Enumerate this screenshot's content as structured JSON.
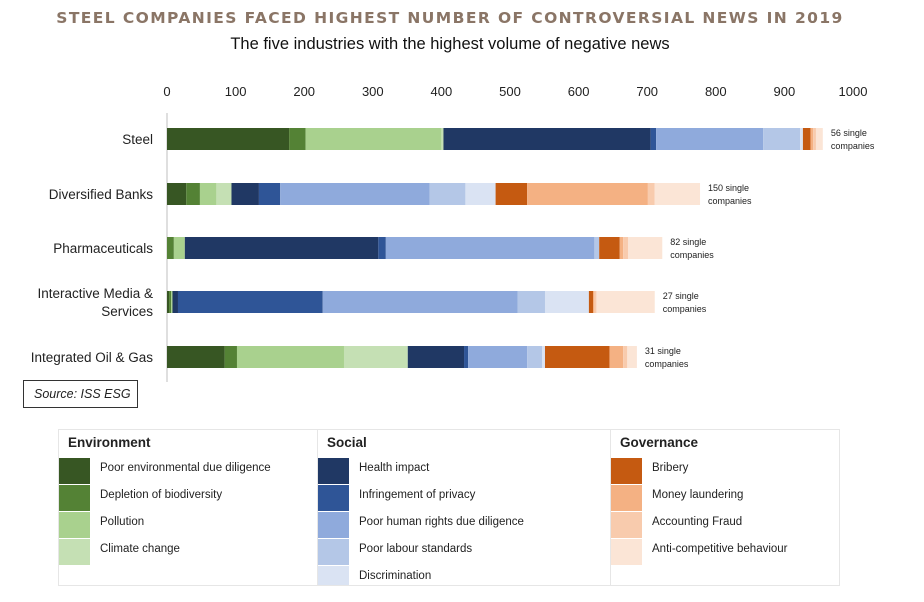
{
  "title": "STEEL COMPANIES FACED HIGHEST NUMBER OF CONTROVERSIAL NEWS IN 2019",
  "subtitle": "The five industries with the highest volume of negative news",
  "source": "Source: ISS ESG",
  "chart_data": {
    "type": "bar",
    "orientation": "horizontal",
    "stacked": true,
    "xlim": [
      0,
      1000
    ],
    "x_ticks": [
      "0",
      "100",
      "200",
      "300",
      "400",
      "500",
      "600",
      "700",
      "800",
      "900",
      "1000"
    ],
    "categories": [
      {
        "label": "Steel",
        "lines": [
          "Steel"
        ],
        "note_lines": [
          "56 single",
          "companies"
        ]
      },
      {
        "label": "Diversified Banks",
        "lines": [
          "Diversified Banks"
        ],
        "note_lines": [
          "150 single",
          "companies"
        ]
      },
      {
        "label": "Pharmaceuticals",
        "lines": [
          "Pharmaceuticals"
        ],
        "note_lines": [
          "82 single",
          "companies"
        ]
      },
      {
        "label": "Interactive Media & Services",
        "lines": [
          "Interactive Media &",
          "Services"
        ],
        "note_lines": [
          "27 single",
          "companies"
        ]
      },
      {
        "label": "Integrated Oil & Gas",
        "lines": [
          "Integrated Oil & Gas"
        ],
        "note_lines": [
          "31 single",
          "companies"
        ]
      }
    ],
    "series": [
      {
        "name": "Poor environmental due diligence",
        "group": "Environment",
        "color": "#375623",
        "values": [
          178,
          28,
          0,
          3,
          84
        ]
      },
      {
        "name": "Depletion of biodiversity",
        "group": "Environment",
        "color": "#548235",
        "values": [
          24,
          20,
          10,
          3,
          18
        ]
      },
      {
        "name": "Pollution",
        "group": "Environment",
        "color": "#a9d18e",
        "values": [
          198,
          24,
          16,
          2,
          156
        ]
      },
      {
        "name": "Climate change",
        "group": "Environment",
        "color": "#c5e0b4",
        "values": [
          3,
          22,
          0,
          0,
          93
        ]
      },
      {
        "name": "Health impact",
        "group": "Social",
        "color": "#203864",
        "values": [
          302,
          40,
          282,
          8,
          82
        ]
      },
      {
        "name": "Infringement of privacy",
        "group": "Social",
        "color": "#2f5597",
        "values": [
          8,
          31,
          11,
          211,
          6
        ]
      },
      {
        "name": "Poor human rights due diligence",
        "group": "Social",
        "color": "#8faadc",
        "values": [
          156,
          218,
          304,
          284,
          86
        ]
      },
      {
        "name": "Poor labour standards",
        "group": "Social",
        "color": "#b4c7e7",
        "values": [
          54,
          52,
          7,
          40,
          22
        ]
      },
      {
        "name": "Discrimination",
        "group": "Social",
        "color": "#dae3f3",
        "values": [
          4,
          44,
          0,
          64,
          4
        ]
      },
      {
        "name": "Bribery",
        "group": "Governance",
        "color": "#c55a11",
        "values": [
          11,
          46,
          30,
          6,
          94
        ]
      },
      {
        "name": "Money laundering",
        "group": "Governance",
        "color": "#f4b183",
        "values": [
          4,
          176,
          5,
          2,
          20
        ]
      },
      {
        "name": "Accounting Fraud",
        "group": "Governance",
        "color": "#f8cbad",
        "values": [
          4,
          10,
          7,
          3,
          6
        ]
      },
      {
        "name": "Anti-competitive behaviour",
        "group": "Governance",
        "color": "#fbe5d6",
        "values": [
          10,
          66,
          50,
          85,
          14
        ]
      }
    ]
  },
  "legend": {
    "groups": [
      {
        "header": "Environment",
        "items": [
          {
            "label": "Poor environmental due diligence",
            "color": "#375623"
          },
          {
            "label": "Depletion of biodiversity",
            "color": "#548235"
          },
          {
            "label": "Pollution",
            "color": "#a9d18e"
          },
          {
            "label": "Climate change",
            "color": "#c5e0b4"
          }
        ]
      },
      {
        "header": "Social",
        "items": [
          {
            "label": "Health impact",
            "color": "#203864"
          },
          {
            "label": "Infringement of privacy",
            "color": "#2f5597"
          },
          {
            "label": "Poor human rights due diligence",
            "color": "#8faadc"
          },
          {
            "label": "Poor labour standards",
            "color": "#b4c7e7"
          },
          {
            "label": "Discrimination",
            "color": "#dae3f3"
          }
        ]
      },
      {
        "header": "Governance",
        "items": [
          {
            "label": "Bribery",
            "color": "#c55a11"
          },
          {
            "label": "Money laundering",
            "color": "#f4b183"
          },
          {
            "label": "Accounting Fraud",
            "color": "#f8cbad"
          },
          {
            "label": "Anti-competitive behaviour",
            "color": "#fbe5d6"
          }
        ]
      }
    ]
  }
}
